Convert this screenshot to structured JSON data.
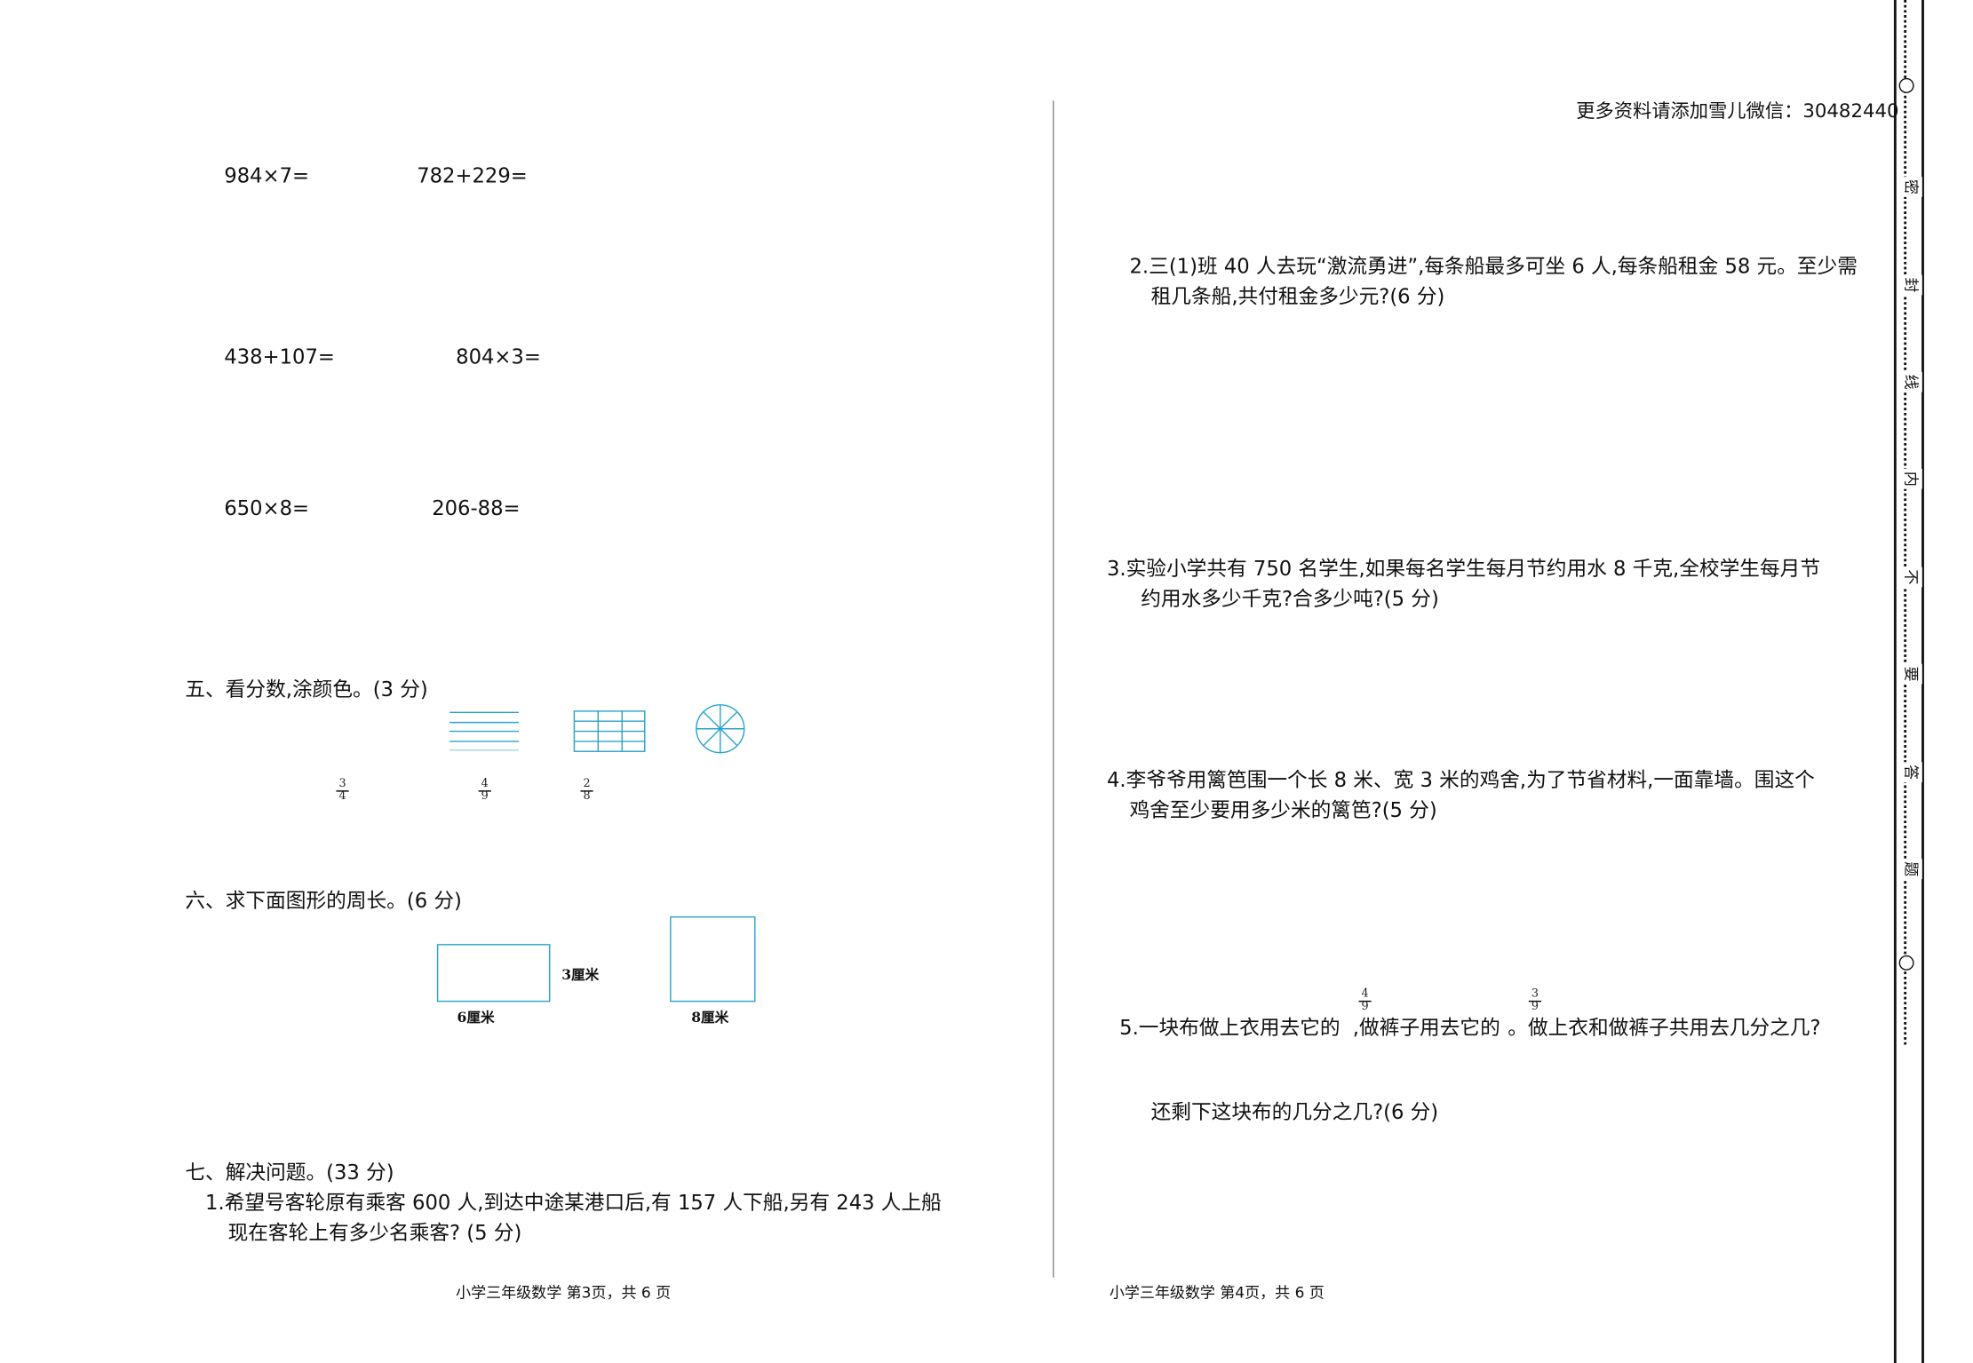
{
  "header_note": "更多资料请添加雪儿微信：30482440",
  "left_page": {
    "calculations": [
      "984×7=",
      "782+229=",
      "438+107=",
      "804×3=",
      "650×8=",
      "206-88="
    ],
    "section5": {
      "title": "五、看分数,涂颜色。(3 分)",
      "fractions": [
        {
          "num": "3",
          "den": "4"
        },
        {
          "num": "4",
          "den": "9"
        },
        {
          "num": "2",
          "den": "8"
        }
      ]
    },
    "section6": {
      "title": "六、求下面图形的周长。(6 分)",
      "rect_height_label": "3厘米",
      "rect_width_label": "6厘米",
      "square_label": "8厘米"
    },
    "section7": {
      "title": "七、解决问题。(33 分)",
      "q1_line1": "1.希望号客轮原有乘客 600 人,到达中途某港口后,有 157 人下船,另有 243 人上船",
      "q1_line2": "现在客轮上有多少名乘客? (5 分)"
    },
    "footer": "小学三年级数学 第3页，共 6 页"
  },
  "right_page": {
    "q2_line1": "2.三(1)班 40 人去玩“激流勇进”,每条船最多可坐 6 人,每条船租金 58 元。至少需",
    "q2_line2": "租几条船,共付租金多少元?(6 分)",
    "q3_line1": "3.实验小学共有 750 名学生,如果每名学生每月节约用水 8 千克,全校学生每月节",
    "q3_line2": "约用水多少千克?合多少吨?(5 分)",
    "q4_line1": "4.李爷爷用篱笆围一个长 8 米、宽 3 米的鸡舍,为了节省材料,一面靠墙。围这个",
    "q4_line2": "鸡舍至少要用多少米的篱笆?(5 分)",
    "q5_part1": "5.一块布做上衣用去它的",
    "q5_frac1": {
      "num": "4",
      "den": "9"
    },
    "q5_part2": ",做裤子用去它的",
    "q5_frac2": {
      "num": "3",
      "den": "9"
    },
    "q5_part3": "。做上衣和做裤子共用去几分之几?",
    "q5_line2": "还剩下这块布的几分之几?(6 分)",
    "footer": "小学三年级数学 第4页，共 6 页"
  },
  "binding_strip": [
    "密",
    "封",
    "线",
    "内",
    "不",
    "要",
    "答",
    "题"
  ],
  "colors": {
    "figure_blue": "#2aa3cc"
  }
}
